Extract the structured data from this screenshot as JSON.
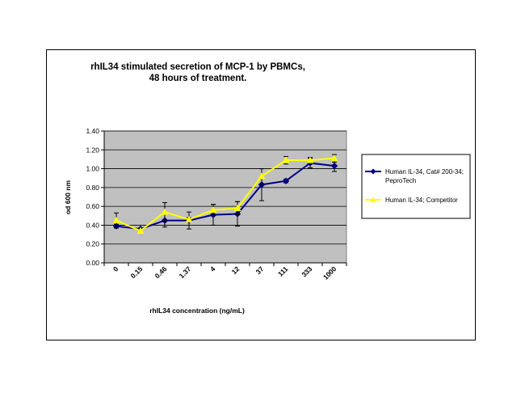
{
  "chart_data": {
    "type": "line",
    "title_lines": [
      "rhIL34 stimulated secretion of MCP-1 by PBMCs,",
      "48 hours of treatment."
    ],
    "xlabel": "rhIL34 concentration (ng/mL)",
    "ylabel": "od 600 nm",
    "categories": [
      "0",
      "0.15",
      "0.46",
      "1.37",
      "4",
      "12",
      "37",
      "111",
      "333",
      "1000"
    ],
    "y_ticks": [
      "0.00",
      "0.20",
      "0.40",
      "0.60",
      "0.80",
      "1.00",
      "1.20",
      "1.40"
    ],
    "ylim": [
      0,
      1.4
    ],
    "grid": true,
    "legend_position": "right",
    "plot_background": "#C0C0C0",
    "series": [
      {
        "name_lines": [
          "Human IL-34, Cat# 200-34;",
          "PeproTech"
        ],
        "color": "#000080",
        "marker": "diamond",
        "values": [
          0.39,
          0.36,
          0.45,
          0.45,
          0.51,
          0.52,
          0.83,
          0.87,
          1.06,
          1.03
        ],
        "errors": [
          0.02,
          0.01,
          0.07,
          0.09,
          0.11,
          0.13,
          0.17,
          0.02,
          0.05,
          0.06
        ]
      },
      {
        "name_lines": [
          "Human IL-34; Competitor"
        ],
        "color": "#FFFF00",
        "marker": "triangle",
        "values": [
          0.45,
          0.34,
          0.54,
          0.46,
          0.56,
          0.58,
          0.92,
          1.09,
          1.09,
          1.11
        ],
        "errors": [
          0.08,
          0.02,
          0.1,
          0.02,
          0.06,
          0.07,
          0.08,
          0.04,
          0.03,
          0.04
        ]
      }
    ]
  }
}
